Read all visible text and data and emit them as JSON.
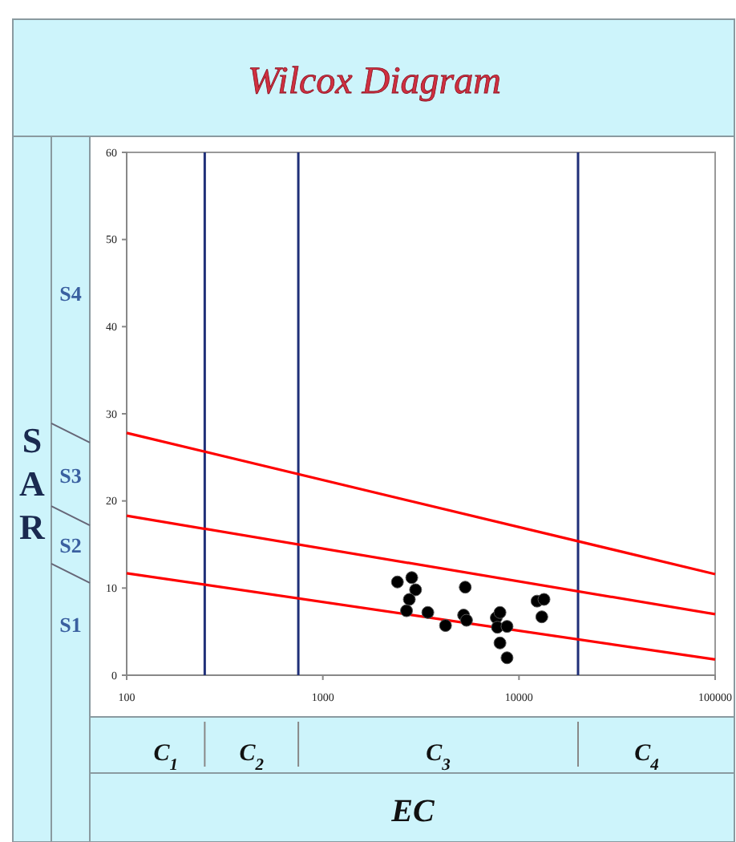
{
  "chart_data": {
    "type": "scatter",
    "title": "Wilcox Diagram",
    "xlabel": "EC",
    "ylabel": "SAR",
    "log": "x",
    "xlim": [
      100,
      100000
    ],
    "xticks": [
      100,
      1000,
      10000,
      100000
    ],
    "ylim": [
      0,
      60
    ],
    "yticks": [
      0,
      10,
      20,
      30,
      40,
      50,
      60
    ],
    "grid": false,
    "series": [
      {
        "marker": "circle",
        "color": "#000000",
        "x": [
          2400,
          2840,
          2970,
          2760,
          2670,
          3430,
          4220,
          5320,
          5220,
          5400,
          7660,
          8000,
          7760,
          8690,
          8000,
          8690,
          12360,
          13410,
          13070
        ],
        "values": [
          10.7,
          11.2,
          9.8,
          8.7,
          7.4,
          7.2,
          5.7,
          10.1,
          6.9,
          6.3,
          6.6,
          7.2,
          5.5,
          5.6,
          3.7,
          2.0,
          8.5,
          8.7,
          6.7
        ]
      },
      {
        "type": "line",
        "marker": "none",
        "color": "#ff0000",
        "x": [
          100,
          100000
        ],
        "values": [
          11.7,
          1.8
        ]
      },
      {
        "type": "line",
        "marker": "none",
        "color": "#ff0000",
        "x": [
          100,
          100000
        ],
        "values": [
          18.3,
          7.0
        ]
      },
      {
        "type": "line",
        "marker": "none",
        "color": "#ff0000",
        "x": [
          100,
          100000
        ],
        "values": [
          27.8,
          11.6
        ]
      }
    ],
    "ref_lines": [
      {
        "axis": "x",
        "value": 250,
        "color": "#1f2f78"
      },
      {
        "axis": "x",
        "value": 750,
        "color": "#1f2f78"
      },
      {
        "axis": "x",
        "value": 20000,
        "color": "#1f2f78"
      }
    ],
    "annotations": [
      "S1",
      "S2",
      "S3",
      "S4",
      "C$_{1}$",
      "C$_{2}$",
      "C$_{3}$",
      "C$_{4}$"
    ]
  }
}
